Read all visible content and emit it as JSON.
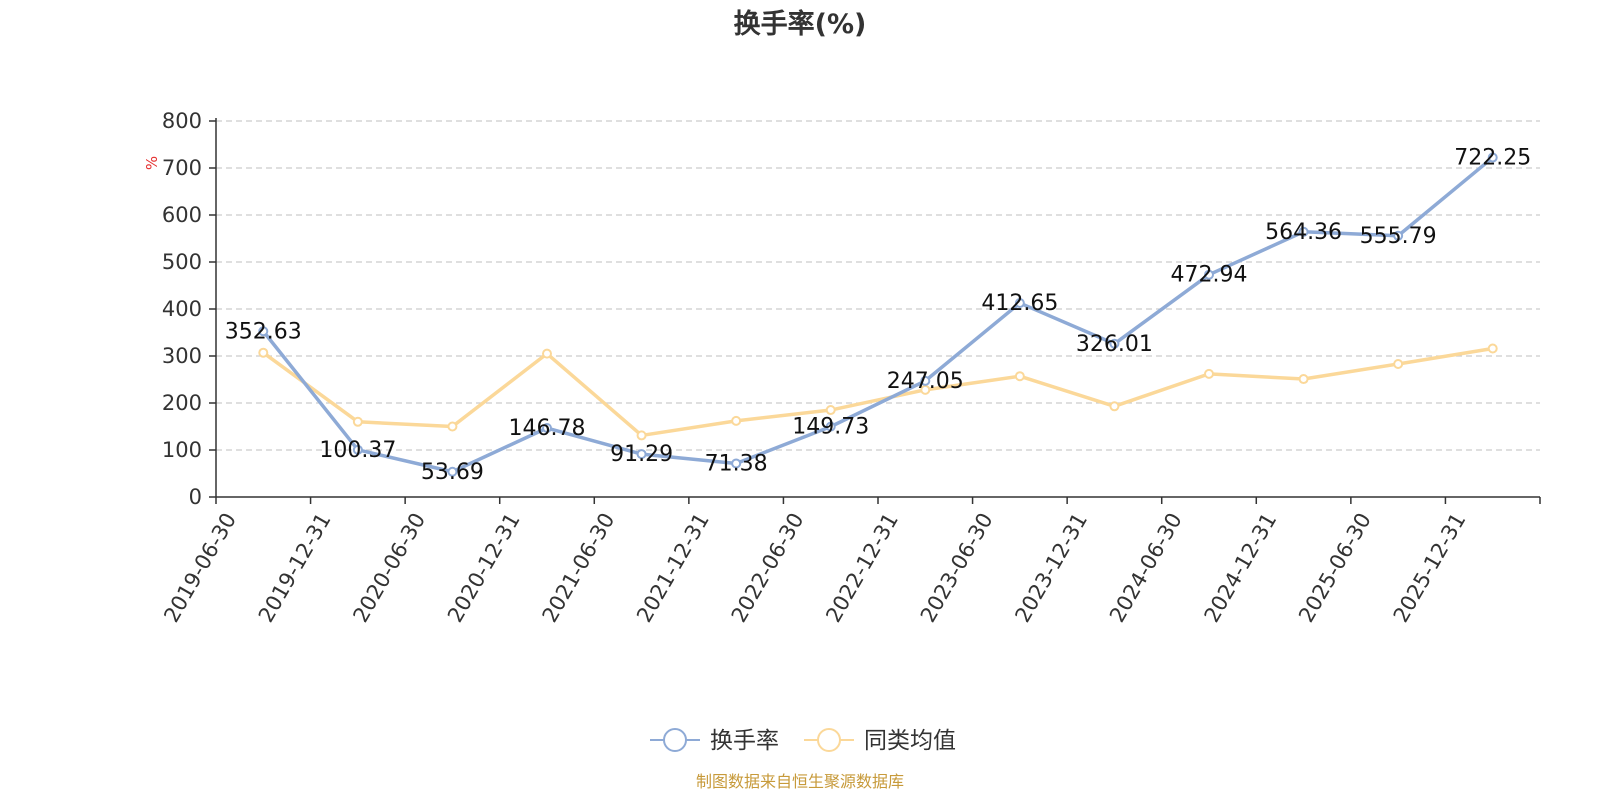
{
  "chart_data": {
    "type": "line",
    "title": "换手率(%)",
    "ylabel": "%",
    "ylim": [
      0,
      800
    ],
    "yticks": [
      0,
      100,
      200,
      300,
      400,
      500,
      600,
      700,
      800
    ],
    "categories": [
      "2019-06-30",
      "2019-12-31",
      "2020-06-30",
      "2020-12-31",
      "2021-06-30",
      "2021-12-31",
      "2022-06-30",
      "2022-12-31",
      "2023-06-30",
      "2023-12-31",
      "2024-06-30",
      "2024-12-31",
      "2025-06-30",
      "2025-12-31"
    ],
    "series": [
      {
        "name": "换手率",
        "color": "#8eaad6",
        "values": [
          352.63,
          100.37,
          53.69,
          146.78,
          91.29,
          71.38,
          149.73,
          247.05,
          412.65,
          326.01,
          472.94,
          564.36,
          555.79,
          722.25
        ],
        "labels": [
          "352.63",
          "100.37",
          "53.69",
          "146.78",
          "91.29",
          "71.38",
          "149.73",
          "247.05",
          "412.65",
          "326.01",
          "472.94",
          "564.36",
          "555.79",
          "722.25"
        ]
      },
      {
        "name": "同类均值",
        "color": "#fbd899",
        "values": [
          307,
          160,
          150,
          305,
          131,
          162,
          185,
          228,
          257,
          193,
          262,
          251,
          283,
          316
        ]
      }
    ],
    "grid": true,
    "legend_position": "bottom-center",
    "source": "制图数据来自恒生聚源数据库"
  }
}
